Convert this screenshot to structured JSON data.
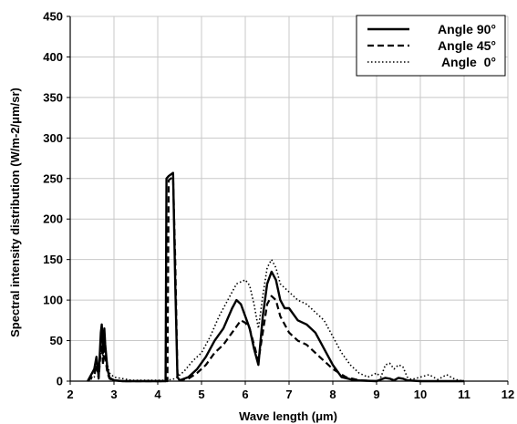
{
  "chart_data": {
    "type": "line",
    "title": "",
    "xlabel": "Wave length (μm)",
    "ylabel": "Spectral intensity distribution (W/m-2/μm/sr)",
    "xlim": [
      2,
      12
    ],
    "ylim": [
      0,
      450
    ],
    "xticks": [
      2,
      3,
      4,
      5,
      6,
      7,
      8,
      9,
      10,
      11,
      12
    ],
    "yticks": [
      0,
      50,
      100,
      150,
      200,
      250,
      300,
      350,
      400,
      450
    ],
    "grid": true,
    "legend_position": "top-right",
    "series": [
      {
        "name": "Angle 90°",
        "style": "solid",
        "x": [
          2.4,
          2.55,
          2.6,
          2.65,
          2.7,
          2.72,
          2.75,
          2.78,
          2.8,
          2.85,
          2.9,
          3.0,
          3.2,
          4.18,
          4.2,
          4.25,
          4.3,
          4.35,
          4.4,
          4.45,
          4.5,
          4.7,
          4.9,
          5.1,
          5.3,
          5.5,
          5.7,
          5.8,
          5.9,
          6.0,
          6.1,
          6.2,
          6.3,
          6.4,
          6.5,
          6.6,
          6.7,
          6.8,
          6.9,
          7.0,
          7.2,
          7.4,
          7.6,
          7.8,
          8.0,
          8.2,
          8.5,
          9.0,
          9.2,
          9.3,
          9.4,
          9.5,
          9.6,
          9.7,
          10.0,
          11.0
        ],
        "y": [
          0,
          15,
          30,
          5,
          60,
          70,
          35,
          65,
          45,
          15,
          4,
          1,
          0,
          0,
          250,
          253,
          255,
          257,
          120,
          5,
          1,
          5,
          15,
          30,
          50,
          65,
          90,
          100,
          95,
          80,
          65,
          40,
          20,
          80,
          120,
          135,
          125,
          100,
          90,
          90,
          75,
          70,
          60,
          40,
          20,
          5,
          1,
          0,
          4,
          3,
          1,
          4,
          3,
          1,
          0,
          0
        ]
      },
      {
        "name": "Angle 45°",
        "style": "dashed",
        "x": [
          2.4,
          2.55,
          2.6,
          2.65,
          2.7,
          2.72,
          2.75,
          2.78,
          2.8,
          2.85,
          2.9,
          3.0,
          3.2,
          4.22,
          4.25,
          4.3,
          4.35,
          4.4,
          4.45,
          4.5,
          4.7,
          4.9,
          5.1,
          5.3,
          5.5,
          5.7,
          5.9,
          6.0,
          6.1,
          6.2,
          6.3,
          6.4,
          6.5,
          6.6,
          6.7,
          6.8,
          7.0,
          7.2,
          7.4,
          7.6,
          7.8,
          8.0,
          8.3,
          8.6,
          9.0
        ],
        "y": [
          0,
          8,
          20,
          3,
          40,
          45,
          20,
          40,
          30,
          10,
          3,
          1,
          0,
          0,
          248,
          250,
          252,
          150,
          10,
          1,
          3,
          10,
          20,
          35,
          45,
          60,
          75,
          72,
          65,
          45,
          25,
          60,
          95,
          105,
          100,
          80,
          60,
          50,
          45,
          35,
          25,
          15,
          5,
          1,
          0
        ]
      },
      {
        "name": "Angle  0°",
        "style": "dotted",
        "x": [
          2.4,
          2.55,
          2.6,
          2.65,
          2.7,
          2.72,
          2.75,
          2.78,
          2.8,
          2.85,
          2.9,
          3.0,
          3.2,
          3.4,
          4.2,
          4.4,
          4.6,
          4.8,
          5.0,
          5.2,
          5.4,
          5.6,
          5.8,
          6.0,
          6.1,
          6.2,
          6.3,
          6.4,
          6.5,
          6.6,
          6.7,
          6.8,
          7.0,
          7.2,
          7.4,
          7.6,
          7.8,
          8.0,
          8.2,
          8.4,
          8.6,
          8.8,
          9.0,
          9.1,
          9.2,
          9.3,
          9.4,
          9.5,
          9.6,
          9.7,
          9.8,
          10.0,
          10.2,
          10.3,
          10.4,
          10.5,
          10.6,
          10.7,
          10.8,
          11.0
        ],
        "y": [
          0,
          5,
          18,
          8,
          35,
          40,
          30,
          45,
          35,
          20,
          10,
          5,
          3,
          1,
          1,
          3,
          12,
          25,
          35,
          55,
          80,
          100,
          120,
          125,
          118,
          95,
          65,
          105,
          140,
          150,
          140,
          120,
          110,
          100,
          95,
          85,
          75,
          55,
          35,
          20,
          10,
          5,
          10,
          5,
          20,
          22,
          15,
          20,
          18,
          5,
          2,
          5,
          8,
          5,
          2,
          5,
          8,
          5,
          2,
          0
        ]
      }
    ]
  }
}
